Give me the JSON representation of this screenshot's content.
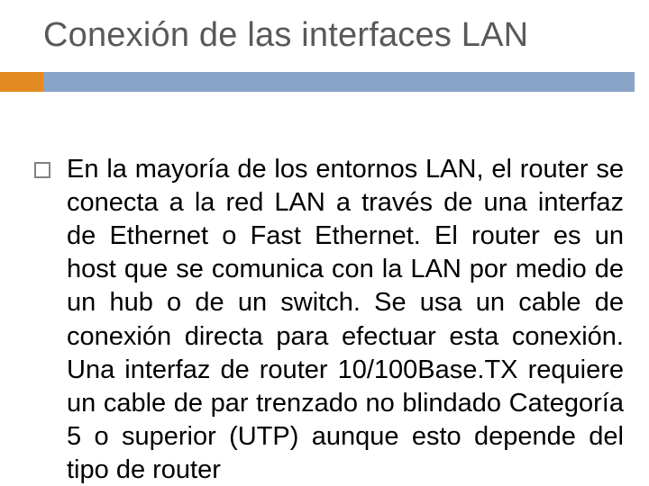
{
  "title": "Conexión de las interfaces LAN",
  "accent_color": "#e38a20",
  "rule_color": "#8aa4c8",
  "bullet_border_color": "#828282",
  "title_color": "#595959",
  "body_color": "#000000",
  "background_color": "#ffffff",
  "title_fontsize": 38,
  "body_fontsize": 29,
  "body": "En la mayoría de los entornos LAN, el router se conecta a la red LAN a través de una interfaz de Ethernet o Fast Ethernet. El router es un host que se comunica con la LAN por medio de un hub o de un switch. Se usa un cable de conexión directa para efectuar esta conexión. Una interfaz de router 10/100Base.TX requiere un cable de par trenzado no blindado Categoría 5 o superior (UTP) aunque esto depende del tipo de router"
}
